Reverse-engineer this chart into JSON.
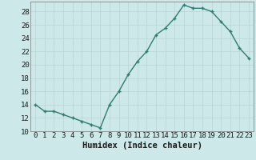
{
  "x": [
    0,
    1,
    2,
    3,
    4,
    5,
    6,
    7,
    8,
    9,
    10,
    11,
    12,
    13,
    14,
    15,
    16,
    17,
    18,
    19,
    20,
    21,
    22,
    23
  ],
  "y": [
    14,
    13,
    13,
    12.5,
    12,
    11.5,
    11,
    10.5,
    14,
    16,
    18.5,
    20.5,
    22,
    24.5,
    25.5,
    27,
    29,
    28.5,
    28.5,
    28,
    26.5,
    25,
    22.5,
    21
  ],
  "line_color": "#2e7d6e",
  "marker": "+",
  "bg_color": "#cce8e8",
  "grid_color": "#b8d4d4",
  "xlabel": "Humidex (Indice chaleur)",
  "xlim": [
    -0.5,
    23.5
  ],
  "ylim": [
    10,
    29.5
  ],
  "yticks": [
    10,
    12,
    14,
    16,
    18,
    20,
    22,
    24,
    26,
    28
  ],
  "xticks": [
    0,
    1,
    2,
    3,
    4,
    5,
    6,
    7,
    8,
    9,
    10,
    11,
    12,
    13,
    14,
    15,
    16,
    17,
    18,
    19,
    20,
    21,
    22,
    23
  ],
  "tick_fontsize": 6.5,
  "xlabel_fontsize": 7.5,
  "line_width": 1.0,
  "marker_size": 3.5
}
